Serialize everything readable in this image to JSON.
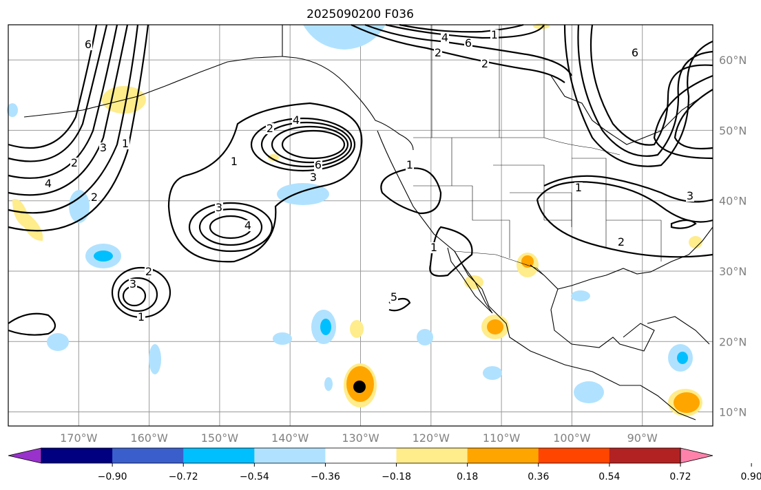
{
  "title": "2025090200 F036",
  "map": {
    "lon_labels": [
      "170°W",
      "160°W",
      "150°W",
      "140°W",
      "130°W",
      "120°W",
      "110°W",
      "100°W",
      "90°W"
    ],
    "lat_labels": [
      "60°N",
      "50°N",
      "40°N",
      "30°N",
      "20°N",
      "10°N"
    ],
    "extent": {
      "lon_min": -180,
      "lon_max": -80,
      "lat_min": 8,
      "lat_max": 65
    },
    "marker": {
      "label": "storm-center",
      "lon": -130,
      "lat": 13.5
    },
    "contour_labels": [
      "6",
      "3",
      "2",
      "1",
      "4",
      "2",
      "4",
      "6",
      "2",
      "3",
      "3",
      "4",
      "1",
      "2",
      "3",
      "1",
      "1",
      "1",
      "5",
      "4",
      "6",
      "1",
      "2",
      "2",
      "6",
      "1",
      "2",
      "3"
    ]
  },
  "colorbar": {
    "ticks": [
      "−0.90",
      "−0.72",
      "−0.54",
      "−0.36",
      "−0.18",
      "0.18",
      "0.36",
      "0.54",
      "0.72",
      "0.90"
    ],
    "colors": [
      "#9932cc",
      "#000080",
      "#3a5fcd",
      "#00bfff",
      "#b0e2ff",
      "#ffffff",
      "#ffec8b",
      "#ffa500",
      "#ff4500",
      "#b22222",
      "#ff82ab"
    ]
  }
}
